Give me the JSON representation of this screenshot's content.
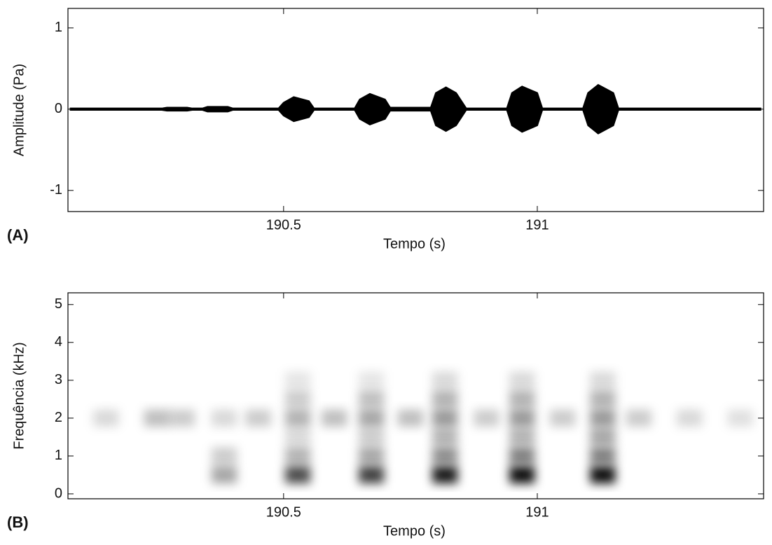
{
  "chart_data": [
    {
      "type": "envelope",
      "label": "(A)",
      "xlabel": "Tempo (s)",
      "ylabel": "Amplitude (Pa)",
      "color": "#000000",
      "xlim": [
        190.075,
        191.446
      ],
      "xticks": [
        190.5,
        191
      ],
      "ylim": [
        -1.26,
        1.24
      ],
      "yticks": [
        -1,
        0,
        1
      ],
      "x": [
        190.08,
        190.26,
        190.27,
        190.31,
        190.32,
        190.34,
        190.35,
        190.39,
        190.4,
        190.49,
        190.5,
        190.52,
        190.55,
        190.56,
        190.64,
        190.65,
        190.67,
        190.7,
        190.71,
        190.79,
        190.8,
        190.82,
        190.84,
        190.86,
        190.94,
        190.95,
        190.97,
        191.0,
        191.01,
        191.09,
        191.1,
        191.12,
        191.15,
        191.16,
        191.44
      ],
      "values": [
        0.01,
        0.01,
        0.02,
        0.02,
        0.01,
        0.01,
        0.03,
        0.03,
        0.01,
        0.01,
        0.08,
        0.15,
        0.1,
        0.01,
        0.01,
        0.12,
        0.19,
        0.12,
        0.02,
        0.02,
        0.2,
        0.27,
        0.2,
        0.01,
        0.01,
        0.2,
        0.28,
        0.2,
        0.01,
        0.01,
        0.2,
        0.3,
        0.2,
        0.01,
        0.01
      ]
    },
    {
      "type": "spectrogram",
      "label": "(B)",
      "xlabel": "Tempo (s)",
      "ylabel": "Frequência (kHz)",
      "color": "#000000",
      "xlim": [
        190.075,
        191.446
      ],
      "xticks": [
        190.5,
        191
      ],
      "ylim": [
        -0.13,
        5.31
      ],
      "yticks": [
        0,
        1,
        2,
        3,
        4,
        5
      ],
      "x": [
        190.383,
        190.383,
        190.383,
        190.528,
        190.528,
        190.528,
        190.528,
        190.528,
        190.528,
        190.673,
        190.673,
        190.673,
        190.673,
        190.673,
        190.673,
        190.818,
        190.818,
        190.818,
        190.818,
        190.818,
        190.818,
        190.97,
        190.97,
        190.97,
        190.97,
        190.97,
        190.97,
        191.129,
        191.129,
        191.129,
        191.129,
        191.129,
        191.129,
        190.15,
        190.25,
        190.3,
        190.45,
        190.6,
        190.75,
        190.9,
        191.05,
        191.2,
        191.3,
        191.4
      ],
      "y": [
        0.5,
        1.0,
        2.0,
        0.5,
        1.0,
        1.5,
        2.0,
        2.5,
        3.0,
        0.5,
        1.0,
        1.5,
        2.0,
        2.5,
        3.0,
        0.5,
        1.0,
        1.5,
        2.0,
        2.5,
        3.0,
        0.5,
        1.0,
        1.5,
        2.0,
        2.5,
        3.0,
        0.5,
        1.0,
        1.5,
        2.0,
        2.5,
        3.0,
        2.0,
        2.0,
        2.0,
        2.0,
        2.0,
        2.0,
        2.0,
        2.0,
        2.0,
        2.0,
        2.0
      ],
      "values": [
        0.35,
        0.2,
        0.15,
        0.7,
        0.3,
        0.15,
        0.3,
        0.2,
        0.1,
        0.75,
        0.35,
        0.2,
        0.35,
        0.25,
        0.1,
        0.9,
        0.45,
        0.3,
        0.4,
        0.3,
        0.15,
        0.95,
        0.5,
        0.3,
        0.4,
        0.3,
        0.15,
        0.95,
        0.5,
        0.35,
        0.4,
        0.3,
        0.15,
        0.15,
        0.25,
        0.2,
        0.2,
        0.25,
        0.25,
        0.2,
        0.2,
        0.2,
        0.15,
        0.12
      ]
    }
  ]
}
